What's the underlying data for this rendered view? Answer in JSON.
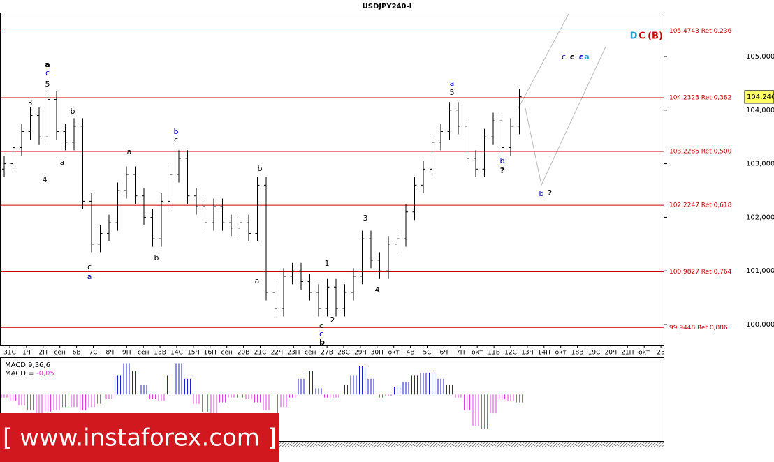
{
  "chart_data": [
    {
      "type": "ohlc",
      "title": "USDJPY240-I",
      "color": "#000000",
      "open": [
        102.9,
        103.0,
        103.3,
        103.6,
        103.9,
        103.5,
        104.2,
        103.6,
        103.4,
        103.7,
        102.3,
        101.5,
        101.7,
        101.9,
        102.5,
        102.8,
        102.4,
        102.0,
        101.6,
        102.3,
        102.8,
        103.1,
        102.4,
        102.2,
        101.9,
        102.2,
        101.9,
        101.8,
        101.9,
        101.7,
        102.6,
        100.6,
        100.3,
        100.9,
        101.0,
        100.8,
        100.6,
        100.3,
        100.7,
        100.3,
        100.6,
        100.9,
        101.6,
        101.2,
        101.0,
        101.5,
        101.6,
        102.1,
        102.6,
        102.9,
        103.4,
        103.6,
        104.0,
        103.7,
        103.1,
        102.9,
        103.5,
        103.8,
        103.3,
        103.7
      ],
      "high": [
        103.15,
        103.45,
        103.75,
        104.05,
        104.05,
        104.35,
        104.35,
        103.75,
        103.85,
        103.85,
        102.45,
        101.85,
        102.05,
        102.65,
        102.95,
        102.95,
        102.55,
        102.15,
        102.45,
        102.95,
        103.25,
        103.25,
        102.55,
        102.35,
        102.35,
        102.35,
        102.05,
        102.05,
        102.05,
        102.75,
        102.75,
        100.75,
        101.05,
        101.15,
        101.15,
        100.95,
        100.75,
        100.85,
        100.85,
        100.75,
        101.05,
        101.75,
        101.75,
        101.35,
        101.65,
        101.75,
        102.25,
        102.75,
        103.05,
        103.55,
        103.75,
        104.15,
        104.15,
        103.85,
        103.25,
        103.65,
        103.95,
        103.95,
        103.85,
        104.4
      ],
      "low": [
        102.75,
        102.85,
        103.15,
        103.45,
        103.35,
        103.35,
        103.45,
        103.25,
        103.25,
        102.15,
        101.35,
        101.35,
        101.55,
        101.75,
        102.35,
        102.25,
        101.85,
        101.45,
        101.45,
        102.15,
        102.65,
        102.25,
        102.05,
        101.75,
        101.75,
        101.75,
        101.65,
        101.65,
        101.55,
        101.55,
        100.45,
        100.15,
        100.15,
        100.75,
        100.65,
        100.45,
        100.15,
        100.15,
        100.15,
        100.15,
        100.45,
        100.75,
        101.05,
        100.85,
        100.85,
        101.35,
        101.45,
        101.95,
        102.45,
        102.75,
        103.25,
        103.45,
        103.55,
        102.95,
        102.75,
        102.75,
        103.35,
        103.15,
        103.15,
        103.55
      ],
      "close": [
        103.0,
        103.3,
        103.6,
        103.9,
        103.5,
        104.2,
        103.6,
        103.4,
        103.7,
        102.3,
        101.5,
        101.7,
        101.9,
        102.5,
        102.8,
        102.4,
        102.0,
        101.6,
        102.3,
        102.8,
        103.1,
        102.4,
        102.2,
        101.9,
        102.2,
        101.9,
        101.8,
        101.9,
        101.7,
        102.6,
        100.6,
        100.3,
        100.9,
        101.0,
        100.8,
        100.6,
        100.3,
        100.7,
        100.3,
        100.6,
        100.9,
        101.6,
        101.2,
        101.0,
        101.5,
        101.6,
        102.1,
        102.6,
        102.9,
        103.4,
        103.6,
        104.0,
        103.7,
        103.1,
        102.9,
        103.5,
        103.8,
        103.3,
        103.7,
        104.25
      ],
      "ylim": [
        99.61,
        105.82
      ],
      "yticks": [
        {
          "value": 100,
          "label": "100,000"
        },
        {
          "value": 101,
          "label": "101,000"
        },
        {
          "value": 102,
          "label": "102,000"
        },
        {
          "value": 103,
          "label": "103,000"
        },
        {
          "value": 104,
          "label": "104,000"
        },
        {
          "value": 105,
          "label": "105,000"
        }
      ],
      "levels": [
        {
          "value": 105.4743,
          "label": "105,4743 Ret 0,236"
        },
        {
          "value": 104.2323,
          "label": "104,2323 Ret 0,382"
        },
        {
          "value": 103.2285,
          "label": "103,2285 Ret 0,500"
        },
        {
          "value": 102.2247,
          "label": "102,2247 Ret 0,618"
        },
        {
          "value": 100.9827,
          "label": "100,9827 Ret 0,764"
        },
        {
          "value": 99.9448,
          "label": "99,9448 Ret 0,886"
        }
      ],
      "level_color": "#cc0000",
      "last_price": {
        "value": 104.246,
        "label": "104,246"
      },
      "x_tick_labels": [
        "31С",
        "1Ч",
        "2П",
        "сен",
        "6В",
        "7С",
        "8Ч",
        "9П",
        "сен",
        "13В",
        "14С",
        "15Ч",
        "16П",
        "сен",
        "20В",
        "21С",
        "22Ч",
        "23П",
        "сен",
        "27В",
        "28С",
        "29Ч",
        "30П",
        "окт",
        "4В",
        "5С",
        "6Ч",
        "7П",
        "окт",
        "11В",
        "12С",
        "13Ч",
        "14П",
        "окт",
        "18В",
        "19С",
        "20Ч",
        "21П",
        "окт",
        "25"
      ],
      "annotations": [
        {
          "text": "a",
          "color": "#000000"
        },
        {
          "text": "c",
          "color": "#0000cc"
        },
        {
          "text": "5",
          "color": "#000000"
        },
        {
          "text": "3",
          "color": "#000000"
        },
        {
          "text": "4",
          "color": "#000000"
        },
        {
          "text": "b",
          "color": "#000000"
        },
        {
          "text": "a",
          "color": "#000000"
        },
        {
          "text": "c",
          "color": "#000000"
        },
        {
          "text": "a",
          "color": "#0000cc"
        },
        {
          "text": "a",
          "color": "#000000"
        },
        {
          "text": "b",
          "color": "#000000"
        },
        {
          "text": "b",
          "color": "#0000cc"
        },
        {
          "text": "c",
          "color": "#000000"
        },
        {
          "text": "b",
          "color": "#000000"
        },
        {
          "text": "a",
          "color": "#000000"
        },
        {
          "text": "1",
          "color": "#000000"
        },
        {
          "text": "3",
          "color": "#000000"
        },
        {
          "text": "2",
          "color": "#000000"
        },
        {
          "text": "4",
          "color": "#000000"
        },
        {
          "text": "c",
          "color": "#000000"
        },
        {
          "text": "c",
          "color": "#0000cc"
        },
        {
          "text": "b",
          "color": "#000000"
        },
        {
          "text": "a",
          "color": "#0000cc"
        },
        {
          "text": "5",
          "color": "#000000"
        },
        {
          "text": "b",
          "color": "#0000cc"
        },
        {
          "text": "?",
          "color": "#000000"
        },
        {
          "text": "b",
          "color": "#0000cc"
        },
        {
          "text": "?",
          "color": "#000000"
        },
        {
          "text": "c",
          "color": "#0000cc"
        },
        {
          "text": "c",
          "color": "#000000"
        },
        {
          "text": "c",
          "color": "#0000cc"
        },
        {
          "text": "a",
          "color": "#1a9fcf"
        },
        {
          "text": "D",
          "color": "#1a9fcf"
        },
        {
          "text": "C",
          "color": "#cc0000"
        },
        {
          "text": "(B)",
          "color": "#cc0000"
        }
      ]
    },
    {
      "type": "bar",
      "title": "MACD 9,36,6",
      "value_name": "MACD =",
      "last_value": {
        "value": -0.05,
        "label": "-0,05"
      },
      "positive_color": "#1f1fd6",
      "negative_color": "#e040e0",
      "ylim": [
        -0.28,
        0.22
      ],
      "values": [
        -0.02,
        -0.04,
        -0.07,
        -0.1,
        -0.12,
        -0.11,
        -0.1,
        -0.08,
        -0.08,
        -0.1,
        -0.08,
        -0.06,
        -0.03,
        0.12,
        0.2,
        0.15,
        0.06,
        -0.03,
        -0.04,
        0.12,
        0.2,
        0.1,
        -0.06,
        -0.11,
        -0.12,
        -0.05,
        -0.02,
        -0.02,
        -0.03,
        -0.05,
        -0.1,
        -0.12,
        -0.08,
        -0.02,
        0.1,
        0.15,
        0.04,
        -0.02,
        -0.02,
        0.06,
        0.12,
        0.18,
        0.1,
        -0.02,
        -0.01,
        0.05,
        0.08,
        0.12,
        0.14,
        0.14,
        0.1,
        0.06,
        -0.02,
        -0.1,
        -0.2,
        -0.22,
        -0.12,
        -0.03,
        -0.04,
        -0.05
      ]
    }
  ],
  "watermark": "[ www.instaforex.com ]"
}
